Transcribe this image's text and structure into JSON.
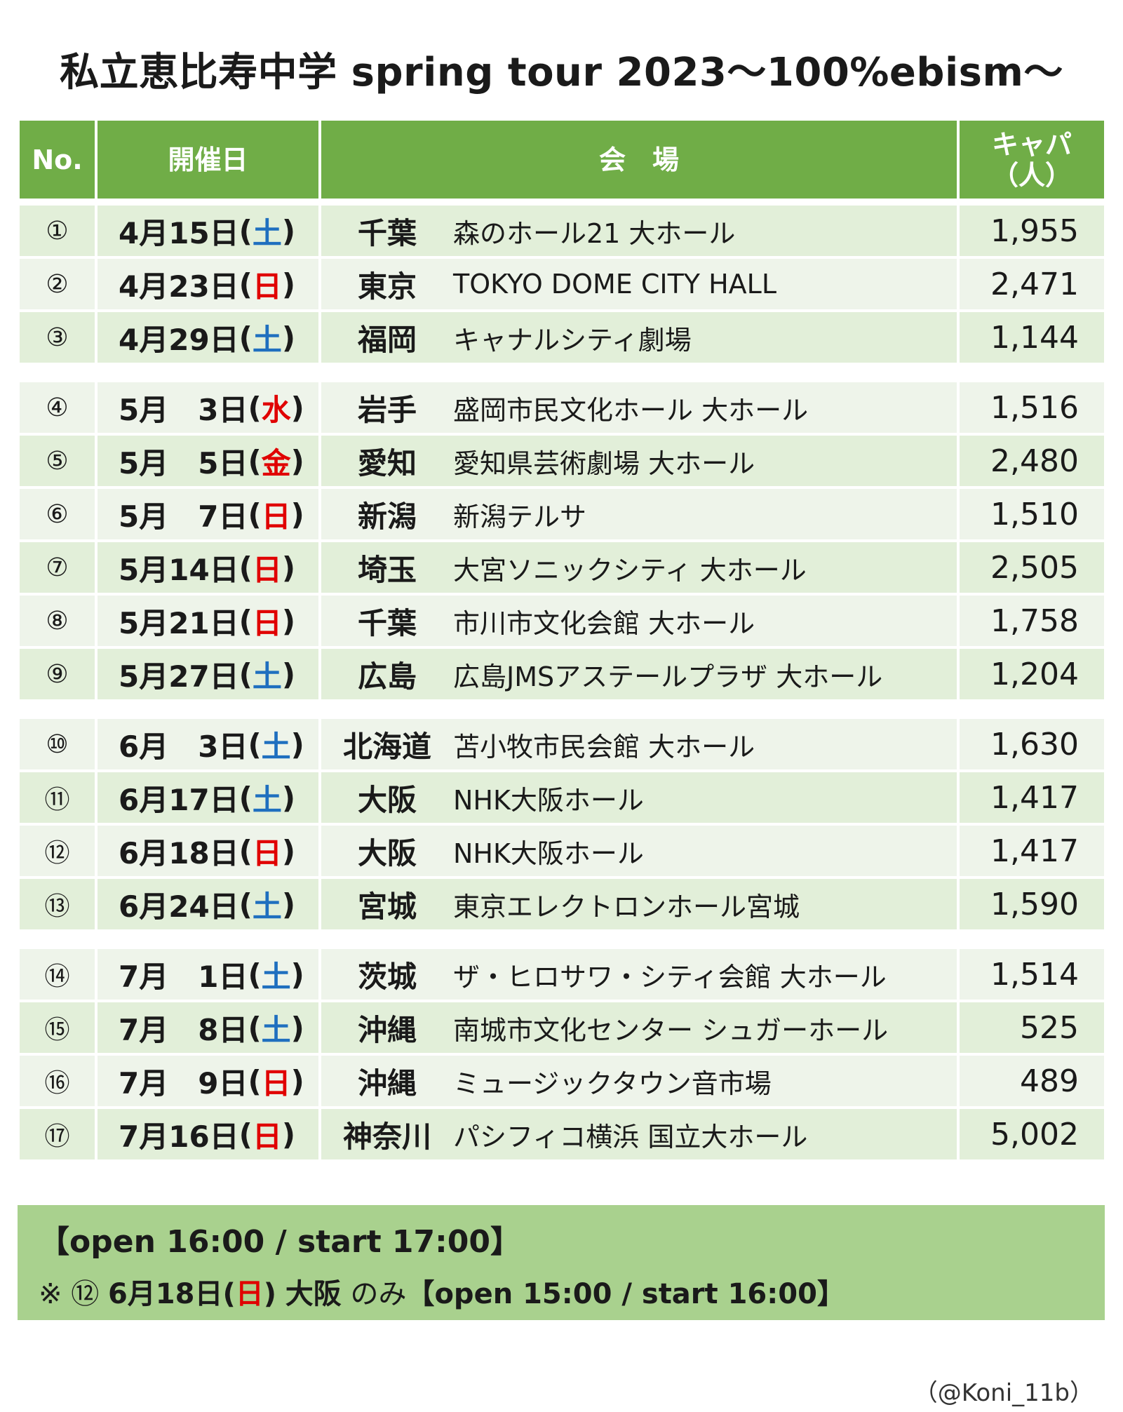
{
  "title": "私立恵比寿中学 spring tour 2023～100%ebism～",
  "headers": {
    "no": "No.",
    "date": "開催日",
    "venue": "会　場",
    "cap_line1": "キャパ",
    "cap_line2": "（人）"
  },
  "colors": {
    "header_bg": "#70ad47",
    "row_dark": "#e2efd9",
    "row_light": "#eef4ea",
    "note_bg": "#a9d18e",
    "saturday": "#1f6fbf",
    "sunday_holiday": "#e00000"
  },
  "rows": [
    {
      "no": "①",
      "date": "4月15日",
      "open": "(",
      "weekday": "土",
      "close": ")",
      "pref": "千葉",
      "hall": "森のホール21 大ホール",
      "capacity": "1,955"
    },
    {
      "no": "②",
      "date": "4月23日",
      "open": "(",
      "weekday": "日",
      "close": ")",
      "pref": "東京",
      "hall": "TOKYO DOME CITY HALL",
      "capacity": "2,471"
    },
    {
      "no": "③",
      "date": "4月29日",
      "open": "(",
      "weekday": "土",
      "close": ")",
      "pref": "福岡",
      "hall": "キャナルシティ劇場",
      "capacity": "1,144"
    },
    {
      "no": "④",
      "date": "5月　3日",
      "open": "(",
      "weekday": "水",
      "close": ")",
      "pref": "岩手",
      "hall": "盛岡市民文化ホール 大ホール",
      "capacity": "1,516"
    },
    {
      "no": "⑤",
      "date": "5月　5日",
      "open": "(",
      "weekday": "金",
      "close": ")",
      "pref": "愛知",
      "hall": "愛知県芸術劇場 大ホール",
      "capacity": "2,480"
    },
    {
      "no": "⑥",
      "date": "5月　7日",
      "open": "(",
      "weekday": "日",
      "close": ")",
      "pref": "新潟",
      "hall": "新潟テルサ",
      "capacity": "1,510"
    },
    {
      "no": "⑦",
      "date": "5月14日",
      "open": "(",
      "weekday": "日",
      "close": ")",
      "pref": "埼玉",
      "hall": "大宮ソニックシティ 大ホール",
      "capacity": "2,505"
    },
    {
      "no": "⑧",
      "date": "5月21日",
      "open": "(",
      "weekday": "日",
      "close": ")",
      "pref": "千葉",
      "hall": "市川市文化会館 大ホール",
      "capacity": "1,758"
    },
    {
      "no": "⑨",
      "date": "5月27日",
      "open": "(",
      "weekday": "土",
      "close": ")",
      "pref": "広島",
      "hall": "広島JMSアステールプラザ 大ホール",
      "capacity": "1,204"
    },
    {
      "no": "⑩",
      "date": "6月　3日",
      "open": "(",
      "weekday": "土",
      "close": ")",
      "pref": "北海道",
      "hall": "苫小牧市民会館 大ホール",
      "capacity": "1,630"
    },
    {
      "no": "⑪",
      "date": "6月17日",
      "open": "(",
      "weekday": "土",
      "close": ")",
      "pref": "大阪",
      "hall": "NHK大阪ホール",
      "capacity": "1,417"
    },
    {
      "no": "⑫",
      "date": "6月18日",
      "open": "(",
      "weekday": "日",
      "close": ")",
      "pref": "大阪",
      "hall": "NHK大阪ホール",
      "capacity": "1,417"
    },
    {
      "no": "⑬",
      "date": "6月24日",
      "open": "(",
      "weekday": "土",
      "close": ")",
      "pref": "宮城",
      "hall": "東京エレクトロンホール宮城",
      "capacity": "1,590"
    },
    {
      "no": "⑭",
      "date": "7月　1日",
      "open": "(",
      "weekday": "土",
      "close": ")",
      "pref": "茨城",
      "hall": "ザ・ヒロサワ・シティ会館 大ホール",
      "capacity": "1,514"
    },
    {
      "no": "⑮",
      "date": "7月　8日",
      "open": "(",
      "weekday": "土",
      "close": ")",
      "pref": "沖縄",
      "hall": "南城市文化センター シュガーホール",
      "capacity": "525"
    },
    {
      "no": "⑯",
      "date": "7月　9日",
      "open": "(",
      "weekday": "日",
      "close": ")",
      "pref": "沖縄",
      "hall": "ミュージックタウン音市場",
      "capacity": "489"
    },
    {
      "no": "⑰",
      "date": "7月16日",
      "open": "(",
      "weekday": "日",
      "close": ")",
      "pref": "神奈川",
      "hall": "パシフィコ横浜 国立大ホール",
      "capacity": "5,002"
    }
  ],
  "note": {
    "line1": "【open 16:00 / start 17:00】",
    "mark": "※",
    "ref_no": "⑫",
    "ref_date": "6月18日",
    "ref_open": "(",
    "ref_weekday": "日",
    "ref_close": ")",
    "ref_pref": "大阪",
    "only": "のみ",
    "ref_time": "【open 15:00 / start 16:00】"
  },
  "credit": "（@Koni_11b）"
}
